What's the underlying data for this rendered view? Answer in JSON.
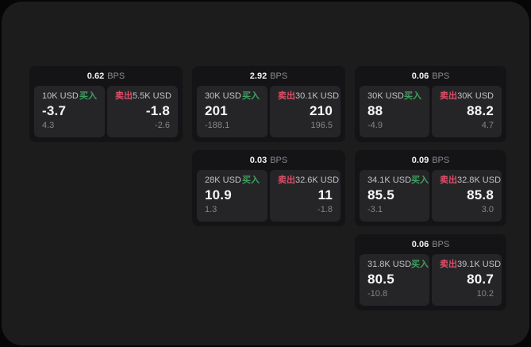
{
  "labels": {
    "bps": "BPS",
    "buy": "买入",
    "sell": "卖出"
  },
  "colors": {
    "buy_green": "#3fa15f",
    "sell_red": "#dd4f68",
    "window_bg": "#1c1c1d",
    "card_bg": "#141416",
    "pane_bg": "#252528"
  },
  "cards": [
    {
      "bps_value": "0.62",
      "buy": {
        "amount": "10K USD",
        "value": "-3.7",
        "delta": "4.3"
      },
      "sell": {
        "amount": "5.5K USD",
        "value": "-1.8",
        "delta": "-2.6"
      }
    },
    {
      "bps_value": "2.92",
      "buy": {
        "amount": "30K USD",
        "value": "201",
        "delta": "-188.1"
      },
      "sell": {
        "amount": "30.1K USD",
        "value": "210",
        "delta": "196.5"
      }
    },
    {
      "bps_value": "0.06",
      "buy": {
        "amount": "30K USD",
        "value": "88",
        "delta": "-4.9"
      },
      "sell": {
        "amount": "30K USD",
        "value": "88.2",
        "delta": "4.7"
      }
    },
    {
      "bps_value": "0.03",
      "buy": {
        "amount": "28K USD",
        "value": "10.9",
        "delta": "1.3"
      },
      "sell": {
        "amount": "32.6K USD",
        "value": "11",
        "delta": "-1.8"
      }
    },
    {
      "bps_value": "0.09",
      "buy": {
        "amount": "34.1K USD",
        "value": "85.5",
        "delta": "-3.1"
      },
      "sell": {
        "amount": "32.8K USD",
        "value": "85.8",
        "delta": "3.0"
      }
    },
    {
      "bps_value": "0.06",
      "buy": {
        "amount": "31.8K USD",
        "value": "80.5",
        "delta": "-10.8"
      },
      "sell": {
        "amount": "39.1K USD",
        "value": "80.7",
        "delta": "10.2"
      }
    }
  ]
}
